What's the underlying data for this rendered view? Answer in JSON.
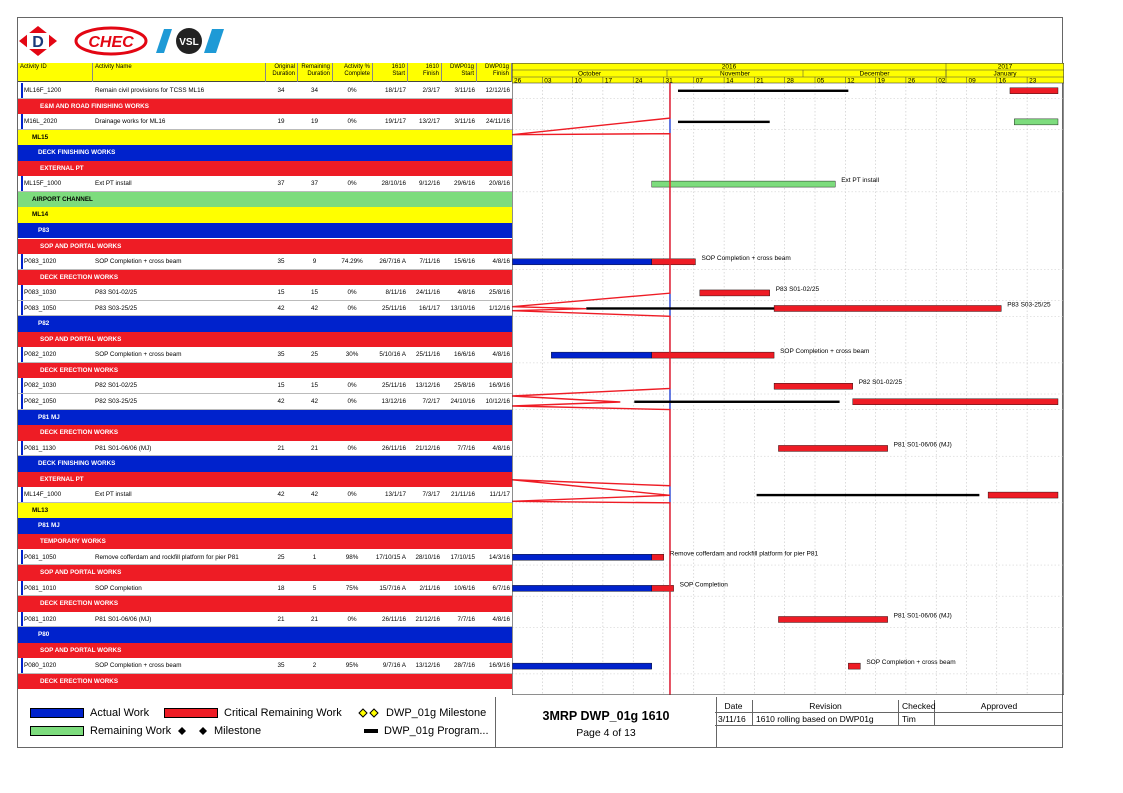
{
  "colors": {
    "actual_work": "#0022cc",
    "critical_remaining": "#ee1c25",
    "remaining_work": "#7ddc7d",
    "milestone_yellow": "#ffff00",
    "progress_line": "#ee1c25",
    "data_date_line": "#0022cc"
  },
  "logos": {
    "first": "D",
    "second": "CHEC",
    "third": "VSL"
  },
  "columns": {
    "activity_id": "Activity ID",
    "activity_name": "Activity Name",
    "orig_dur": [
      "Original",
      "Duration"
    ],
    "rem_dur": [
      "Remaining",
      "Duration"
    ],
    "pct": [
      "Activity %",
      "Complete"
    ],
    "start_1610": [
      "1610",
      "Start"
    ],
    "finish_1610": [
      "1610",
      "Finish"
    ],
    "dwp_start": [
      "DWP01g",
      "Start"
    ],
    "dwp_finish": [
      "DWP01g",
      "Finish"
    ]
  },
  "timescale": {
    "years": [
      "2016",
      "2017"
    ],
    "months": [
      "October",
      "November",
      "December",
      "January"
    ],
    "weeks": [
      "26",
      "03",
      "10",
      "17",
      "24",
      "31",
      "07",
      "14",
      "21",
      "28",
      "05",
      "12",
      "19",
      "26",
      "02",
      "09",
      "16",
      "23"
    ]
  },
  "rows": [
    {
      "kind": "activity",
      "id": "ML16F_1200",
      "name": "Remain civil provisions for TCSS ML16",
      "od": "34",
      "rd": "34",
      "pct": "0%",
      "s": "18/1/17",
      "f": "2/3/17",
      "ds": "3/11/16",
      "df": "12/12/16"
    },
    {
      "kind": "band-red",
      "text": "E&M AND ROAD FINISHING WORKS"
    },
    {
      "kind": "activity",
      "id": "M16L_2020",
      "name": "Drainage works for ML16",
      "od": "19",
      "rd": "19",
      "pct": "0%",
      "s": "19/1/17",
      "f": "13/2/17",
      "ds": "3/11/16",
      "df": "24/11/16"
    },
    {
      "kind": "band-yellow",
      "text": "ML15"
    },
    {
      "kind": "band-blue",
      "text": "DECK FINISHING WORKS"
    },
    {
      "kind": "band-red",
      "text": "EXTERNAL PT"
    },
    {
      "kind": "activity",
      "id": "ML15F_1000",
      "name": "Ext PT install",
      "od": "37",
      "rd": "37",
      "pct": "0%",
      "s": "28/10/16",
      "f": "9/12/16",
      "ds": "29/6/16",
      "df": "20/8/16"
    },
    {
      "kind": "band-green",
      "text": "AIRPORT CHANNEL"
    },
    {
      "kind": "band-yellow",
      "text": "ML14"
    },
    {
      "kind": "band-blue",
      "text": "P83"
    },
    {
      "kind": "band-red",
      "text": "SOP AND PORTAL WORKS"
    },
    {
      "kind": "activity",
      "id": "P083_1020",
      "name": "SOP Completion + cross beam",
      "od": "35",
      "rd": "9",
      "pct": "74.29%",
      "s": "26/7/16 A",
      "f": "7/11/16",
      "ds": "15/6/16",
      "df": "4/8/16"
    },
    {
      "kind": "band-red",
      "text": "DECK ERECTION WORKS"
    },
    {
      "kind": "activity",
      "id": "P083_1030",
      "name": "P83 S01-02/25",
      "od": "15",
      "rd": "15",
      "pct": "0%",
      "s": "8/11/16",
      "f": "24/11/16",
      "ds": "4/8/16",
      "df": "25/8/16"
    },
    {
      "kind": "activity",
      "id": "P083_1050",
      "name": "P83 S03-25/25",
      "od": "42",
      "rd": "42",
      "pct": "0%",
      "s": "25/11/16",
      "f": "16/1/17",
      "ds": "13/10/16",
      "df": "1/12/16"
    },
    {
      "kind": "band-blue",
      "text": "P82"
    },
    {
      "kind": "band-red",
      "text": "SOP AND PORTAL WORKS"
    },
    {
      "kind": "activity",
      "id": "P082_1020",
      "name": "SOP Completion + cross beam",
      "od": "35",
      "rd": "25",
      "pct": "30%",
      "s": "5/10/16 A",
      "f": "25/11/16",
      "ds": "16/6/16",
      "df": "4/8/16"
    },
    {
      "kind": "band-red",
      "text": "DECK ERECTION WORKS"
    },
    {
      "kind": "activity",
      "id": "P082_1030",
      "name": "P82 S01-02/25",
      "od": "15",
      "rd": "15",
      "pct": "0%",
      "s": "25/11/16",
      "f": "13/12/16",
      "ds": "25/8/16",
      "df": "16/9/16"
    },
    {
      "kind": "activity",
      "id": "P082_1050",
      "name": "P82 S03-25/25",
      "od": "42",
      "rd": "42",
      "pct": "0%",
      "s": "13/12/16",
      "f": "7/2/17",
      "ds": "24/10/16",
      "df": "10/12/16"
    },
    {
      "kind": "band-blue",
      "text": "P81 MJ"
    },
    {
      "kind": "band-red",
      "text": "DECK ERECTION WORKS"
    },
    {
      "kind": "activity",
      "id": "P081_1130",
      "name": "P81 S01-06/06 (MJ)",
      "od": "21",
      "rd": "21",
      "pct": "0%",
      "s": "26/11/16",
      "f": "21/12/16",
      "ds": "7/7/16",
      "df": "4/8/16"
    },
    {
      "kind": "band-blue",
      "text": "DECK FINISHING WORKS"
    },
    {
      "kind": "band-red",
      "text": "EXTERNAL PT"
    },
    {
      "kind": "activity",
      "id": "ML14F_1000",
      "name": "Ext PT install",
      "od": "42",
      "rd": "42",
      "pct": "0%",
      "s": "13/1/17",
      "f": "7/3/17",
      "ds": "21/11/16",
      "df": "11/1/17"
    },
    {
      "kind": "band-yellow",
      "text": "ML13"
    },
    {
      "kind": "band-blue",
      "text": "P81 MJ"
    },
    {
      "kind": "band-red",
      "text": "TEMPORARY WORKS"
    },
    {
      "kind": "activity",
      "id": "P081_1050",
      "name": "Remove cofferdam and rockfill platform for pier P81",
      "od": "25",
      "rd": "1",
      "pct": "98%",
      "s": "17/10/15 A",
      "f": "28/10/16",
      "ds": "17/10/15",
      "df": "14/3/16"
    },
    {
      "kind": "band-red",
      "text": "SOP AND PORTAL WORKS"
    },
    {
      "kind": "activity",
      "id": "P081_1010",
      "name": "SOP Completion",
      "od": "18",
      "rd": "5",
      "pct": "75%",
      "s": "15/7/16 A",
      "f": "2/11/16",
      "ds": "10/6/16",
      "df": "6/7/16"
    },
    {
      "kind": "band-red",
      "text": "DECK ERECTION WORKS"
    },
    {
      "kind": "activity",
      "id": "P081_1020",
      "name": "P81 S01-06/06 (MJ)",
      "od": "21",
      "rd": "21",
      "pct": "0%",
      "s": "26/11/16",
      "f": "21/12/16",
      "ds": "7/7/16",
      "df": "4/8/16"
    },
    {
      "kind": "band-blue",
      "text": "P80"
    },
    {
      "kind": "band-red",
      "text": "SOP AND PORTAL WORKS"
    },
    {
      "kind": "activity",
      "id": "P080_1020",
      "name": "SOP Completion + cross beam",
      "od": "35",
      "rd": "2",
      "pct": "95%",
      "s": "9/7/16 A",
      "f": "13/12/16",
      "ds": "28/7/16",
      "df": "16/9/16"
    },
    {
      "kind": "band-red",
      "text": "DECK ERECTION WORKS"
    }
  ],
  "chart_data": {
    "type": "gantt",
    "x_range": [
      "26/9/16",
      "29/1/17"
    ],
    "data_date": "3/11/16",
    "bars": [
      {
        "row": 0,
        "type": "dwp",
        "start": "3/11/16",
        "end": "12/12/16"
      },
      {
        "row": 0,
        "type": "critical",
        "start": "18/1/17",
        "end": "29/1/17"
      },
      {
        "row": 2,
        "type": "dwp",
        "start": "3/11/16",
        "end": "24/11/16"
      },
      {
        "row": 2,
        "type": "remaining",
        "start": "19/1/17",
        "end": "29/1/17"
      },
      {
        "row": 6,
        "type": "remaining",
        "start": "28/10/16",
        "end": "9/12/16",
        "label": "Ext PT install"
      },
      {
        "row": 11,
        "type": "actual",
        "start": "26/9/16",
        "end": "28/10/16"
      },
      {
        "row": 11,
        "type": "critical",
        "start": "28/10/16",
        "end": "7/11/16",
        "label": "SOP Completion + cross beam"
      },
      {
        "row": 13,
        "type": "critical",
        "start": "8/11/16",
        "end": "24/11/16",
        "label": "P83 S01-02/25"
      },
      {
        "row": 14,
        "type": "dwp",
        "start": "13/10/16",
        "end": "1/12/16"
      },
      {
        "row": 14,
        "type": "critical",
        "start": "25/11/16",
        "end": "16/1/17",
        "label": "P83 S03-25/25"
      },
      {
        "row": 17,
        "type": "actual",
        "start": "5/10/16",
        "end": "28/10/16"
      },
      {
        "row": 17,
        "type": "critical",
        "start": "28/10/16",
        "end": "25/11/16",
        "label": "SOP Completion + cross beam"
      },
      {
        "row": 19,
        "type": "critical",
        "start": "25/11/16",
        "end": "13/12/16",
        "label": "P82 S01-02/25"
      },
      {
        "row": 20,
        "type": "dwp",
        "start": "24/10/16",
        "end": "10/12/16"
      },
      {
        "row": 20,
        "type": "critical",
        "start": "13/12/16",
        "end": "29/1/17"
      },
      {
        "row": 23,
        "type": "critical",
        "start": "26/11/16",
        "end": "21/12/16",
        "label": "P81 S01-06/06 (MJ)"
      },
      {
        "row": 26,
        "type": "dwp",
        "start": "21/11/16",
        "end": "11/1/17"
      },
      {
        "row": 26,
        "type": "critical",
        "start": "13/1/17",
        "end": "29/1/17"
      },
      {
        "row": 30,
        "type": "actual",
        "start": "26/9/16",
        "end": "28/10/16"
      },
      {
        "row": 30,
        "type": "critical",
        "start": "28/10/16",
        "end": "28/10/16",
        "label": "Remove cofferdam and rockfill platform for pier P81"
      },
      {
        "row": 32,
        "type": "actual",
        "start": "26/9/16",
        "end": "28/10/16"
      },
      {
        "row": 32,
        "type": "critical",
        "start": "28/10/16",
        "end": "2/11/16",
        "label": "SOP Completion"
      },
      {
        "row": 34,
        "type": "critical",
        "start": "26/11/16",
        "end": "21/12/16",
        "label": "P81 S01-06/06 (MJ)"
      },
      {
        "row": 37,
        "type": "actual",
        "start": "26/9/16",
        "end": "28/10/16"
      },
      {
        "row": 37,
        "type": "critical",
        "start": "12/12/16",
        "end": "13/12/16",
        "label": "SOP Completion + cross beam"
      }
    ],
    "progress_line": [
      {
        "row": 3,
        "date": "28/10/16"
      },
      {
        "row": 14,
        "date": "26/9/16"
      },
      {
        "row": 14,
        "date": "13/10/16"
      },
      {
        "row": 20,
        "date": "26/9/16"
      },
      {
        "row": 20,
        "date": "24/10/16"
      },
      {
        "row": 26,
        "date": "26/9/16"
      },
      {
        "row": 26,
        "date": "28/10/16"
      }
    ]
  },
  "legend": {
    "actual_work": "Actual Work",
    "critical_remaining": "Critical Remaining Work",
    "dwp_milestone": "DWP_01g Milestone",
    "remaining_work": "Remaining Work",
    "milestone": "Milestone",
    "dwp_program": "DWP_01g Program..."
  },
  "title_block": {
    "title": "3MRP DWP_01g 1610",
    "page": "Page 4 of 13"
  },
  "revision": {
    "headers": {
      "date": "Date",
      "revision": "Revision",
      "checked": "Checked",
      "approved": "Approved"
    },
    "rows": [
      {
        "date": "3/11/16",
        "revision": "1610 rolling based on DWP01g",
        "checked": "Tim",
        "approved": ""
      }
    ]
  }
}
